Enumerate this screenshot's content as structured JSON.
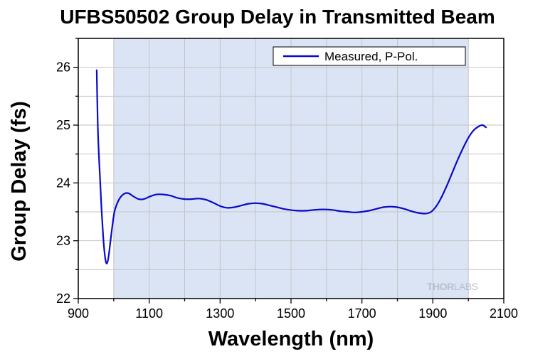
{
  "chart_data": {
    "type": "line",
    "title": "UFBS50502 Group Delay in Transmitted Beam",
    "xlabel": "Wavelength (nm)",
    "ylabel": "Group Delay (fs)",
    "xlim": [
      900,
      2100
    ],
    "ylim": [
      22,
      26.5
    ],
    "xticks": [
      900,
      1100,
      1300,
      1500,
      1700,
      1900,
      2100
    ],
    "yticks": [
      22,
      23,
      24,
      25,
      26
    ],
    "x_minor_step": 100,
    "y_minor_step": 0.5,
    "grid": true,
    "shaded_region": {
      "x": [
        1000,
        2000
      ],
      "color": "#dbe4f4"
    },
    "legend": {
      "position": "top-right",
      "entries": [
        "Measured, P-Pol."
      ]
    },
    "watermark": {
      "prefix": "THOR",
      "suffix": "LABS"
    },
    "series": [
      {
        "name": "Measured, P-Pol.",
        "color": "#0a0ac8",
        "points": [
          [
            952,
            25.95
          ],
          [
            955,
            25.0
          ],
          [
            958,
            24.5
          ],
          [
            962,
            24.0
          ],
          [
            966,
            23.5
          ],
          [
            970,
            23.1
          ],
          [
            974,
            22.8
          ],
          [
            978,
            22.63
          ],
          [
            982,
            22.62
          ],
          [
            986,
            22.75
          ],
          [
            990,
            22.95
          ],
          [
            996,
            23.25
          ],
          [
            1002,
            23.5
          ],
          [
            1010,
            23.65
          ],
          [
            1020,
            23.76
          ],
          [
            1032,
            23.82
          ],
          [
            1042,
            23.82
          ],
          [
            1055,
            23.77
          ],
          [
            1070,
            23.72
          ],
          [
            1085,
            23.72
          ],
          [
            1100,
            23.76
          ],
          [
            1120,
            23.8
          ],
          [
            1140,
            23.8
          ],
          [
            1160,
            23.78
          ],
          [
            1180,
            23.74
          ],
          [
            1200,
            23.72
          ],
          [
            1220,
            23.72
          ],
          [
            1240,
            23.73
          ],
          [
            1260,
            23.71
          ],
          [
            1280,
            23.66
          ],
          [
            1300,
            23.6
          ],
          [
            1320,
            23.57
          ],
          [
            1340,
            23.58
          ],
          [
            1360,
            23.61
          ],
          [
            1380,
            23.64
          ],
          [
            1400,
            23.65
          ],
          [
            1420,
            23.64
          ],
          [
            1440,
            23.61
          ],
          [
            1460,
            23.58
          ],
          [
            1480,
            23.55
          ],
          [
            1500,
            23.53
          ],
          [
            1520,
            23.52
          ],
          [
            1540,
            23.52
          ],
          [
            1560,
            23.53
          ],
          [
            1580,
            23.54
          ],
          [
            1600,
            23.54
          ],
          [
            1620,
            23.53
          ],
          [
            1640,
            23.51
          ],
          [
            1660,
            23.5
          ],
          [
            1680,
            23.49
          ],
          [
            1700,
            23.5
          ],
          [
            1720,
            23.52
          ],
          [
            1740,
            23.55
          ],
          [
            1760,
            23.58
          ],
          [
            1780,
            23.59
          ],
          [
            1800,
            23.58
          ],
          [
            1820,
            23.55
          ],
          [
            1840,
            23.51
          ],
          [
            1860,
            23.48
          ],
          [
            1880,
            23.47
          ],
          [
            1895,
            23.5
          ],
          [
            1910,
            23.6
          ],
          [
            1925,
            23.76
          ],
          [
            1940,
            23.96
          ],
          [
            1955,
            24.18
          ],
          [
            1970,
            24.4
          ],
          [
            1985,
            24.6
          ],
          [
            2000,
            24.78
          ],
          [
            2015,
            24.91
          ],
          [
            2030,
            24.98
          ],
          [
            2040,
            25.0
          ],
          [
            2050,
            24.96
          ]
        ]
      }
    ]
  }
}
